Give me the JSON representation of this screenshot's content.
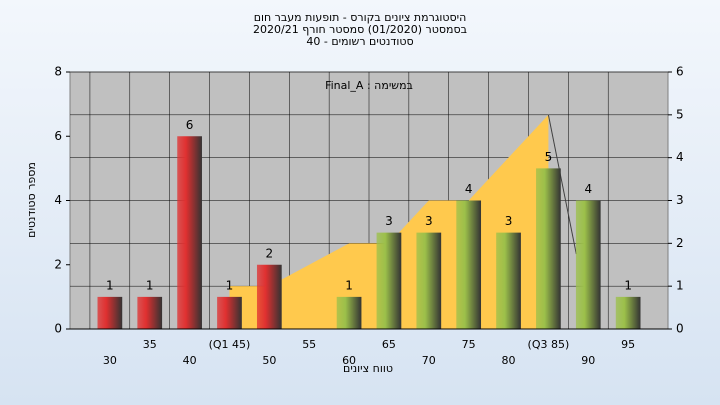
{
  "chart_data": {
    "type": "bar",
    "title": "היסטוגרמת ציונים בקורס - תופעות מעבר חום",
    "subtitle": "בסמסטר (01/2020) סמסטר חורף 2020/21",
    "subtitle2": "סטודנטים רשומים - 40",
    "annotation": "במשימה : Final_A",
    "x_label": "טווח ציונים",
    "y_label": "מספר סטודנטים",
    "categories": [
      "30",
      "35",
      "40",
      "(Q1 45)",
      "50",
      "55",
      "60",
      "65",
      "70",
      "75",
      "80",
      "(Q3 85)",
      "90",
      "95"
    ],
    "values": [
      1,
      1,
      6,
      1,
      2,
      0,
      1,
      3,
      3,
      4,
      3,
      5,
      4,
      1
    ],
    "value_labels": [
      "1",
      "1",
      "6",
      "1",
      "2",
      null,
      "1",
      "3",
      "3",
      "4",
      "3",
      "5",
      "4",
      "1"
    ],
    "bar_colors": [
      "#e03030",
      "#e03030",
      "#e03030",
      "#e03030",
      "#e03030",
      "#e03030",
      "#9cc04a",
      "#9cc04a",
      "#9cc04a",
      "#9cc04a",
      "#9cc04a",
      "#9cc04a",
      "#9cc04a",
      "#9cc04a"
    ],
    "area": {
      "values": [
        null,
        null,
        null,
        1,
        1,
        1.5,
        2,
        2,
        3,
        3,
        4,
        5,
        null,
        null
      ],
      "color": "#ffc94d",
      "axis": "y2"
    },
    "ylim": [
      0,
      8
    ],
    "yticks": [
      0,
      2,
      4,
      6,
      8
    ],
    "y2lim": [
      0,
      6
    ],
    "y2ticks": [
      0,
      1,
      2,
      3,
      4,
      5,
      6
    ],
    "grid": true
  }
}
